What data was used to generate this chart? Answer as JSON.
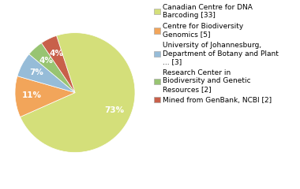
{
  "legend_labels": [
    "Canadian Centre for DNA\nBarcoding [33]",
    "Centre for Biodiversity\nGenomics [5]",
    "University of Johannesburg,\nDepartment of Botany and Plant\n... [3]",
    "Research Center in\nBiodiversity and Genetic\nResources [2]",
    "Mined from GenBank, NCBI [2]"
  ],
  "values": [
    33,
    5,
    3,
    2,
    2
  ],
  "colors": [
    "#d4df7a",
    "#f2a55a",
    "#96bcd8",
    "#98c472",
    "#c8604a"
  ],
  "autopct_fontsize": 7.5,
  "legend_fontsize": 6.5,
  "startangle": 108,
  "pctdistance": 0.72,
  "background_color": "#ffffff",
  "pct_threshold": 2.5
}
